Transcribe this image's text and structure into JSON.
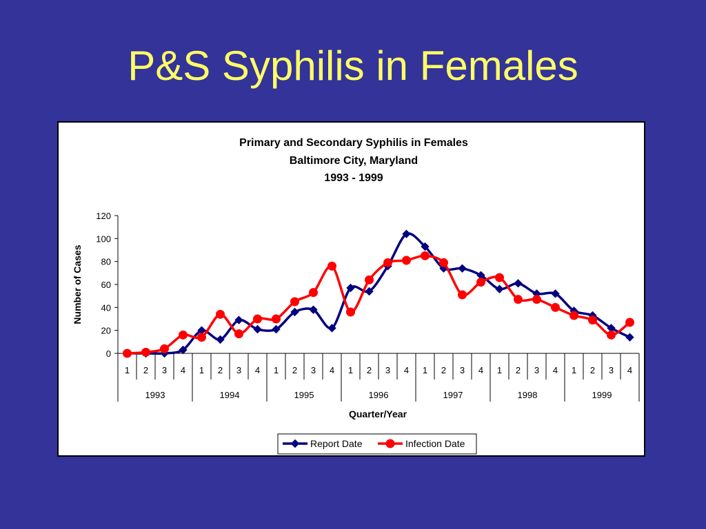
{
  "slide": {
    "title": "P&S Syphilis in Females"
  },
  "chart_data": {
    "type": "line",
    "title": "Primary and Secondary Syphilis in Females",
    "subtitle_lines": [
      "Baltimore City, Maryland",
      "1993 - 1999"
    ],
    "xlabel": "Quarter/Year",
    "ylabel": "Number of Cases",
    "ylim": [
      0,
      120
    ],
    "y_ticks": [
      0,
      20,
      40,
      60,
      80,
      100,
      120
    ],
    "categories": [
      "1993 Q1",
      "1993 Q2",
      "1993 Q3",
      "1993 Q4",
      "1994 Q1",
      "1994 Q2",
      "1994 Q3",
      "1994 Q4",
      "1995 Q1",
      "1995 Q2",
      "1995 Q3",
      "1995 Q4",
      "1996 Q1",
      "1996 Q2",
      "1996 Q3",
      "1996 Q4",
      "1997 Q1",
      "1997 Q2",
      "1997 Q3",
      "1997 Q4",
      "1998 Q1",
      "1998 Q2",
      "1998 Q3",
      "1998 Q4",
      "1999 Q1",
      "1999 Q2",
      "1999 Q3",
      "1999 Q4"
    ],
    "quarter_labels": [
      "1",
      "2",
      "3",
      "4"
    ],
    "years": [
      "1993",
      "1994",
      "1995",
      "1996",
      "1997",
      "1998",
      "1999"
    ],
    "series": [
      {
        "name": "Report Date",
        "color": "#000080",
        "marker": "diamond",
        "values": [
          0,
          0,
          0,
          3,
          20,
          12,
          29,
          21,
          21,
          36,
          38,
          22,
          57,
          54,
          76,
          104,
          93,
          74,
          74,
          68,
          56,
          61,
          52,
          52,
          37,
          33,
          22,
          14
        ]
      },
      {
        "name": "Infection Date",
        "color": "#ff0000",
        "marker": "circle",
        "values": [
          0,
          1,
          4,
          16,
          14,
          34,
          17,
          30,
          30,
          45,
          53,
          76,
          36,
          64,
          79,
          81,
          85,
          79,
          51,
          62,
          66,
          47,
          47,
          40,
          33,
          29,
          16,
          27
        ]
      }
    ],
    "grid": false,
    "legend_position": "bottom-center"
  }
}
